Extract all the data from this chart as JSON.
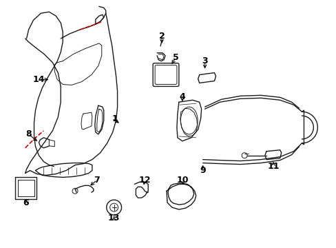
{
  "background_color": "#ffffff",
  "line_color": "#1a1a1a",
  "label_color": "#000000",
  "dashed_color": "#cc0000",
  "figsize": [
    4.89,
    3.6
  ],
  "dpi": 100
}
